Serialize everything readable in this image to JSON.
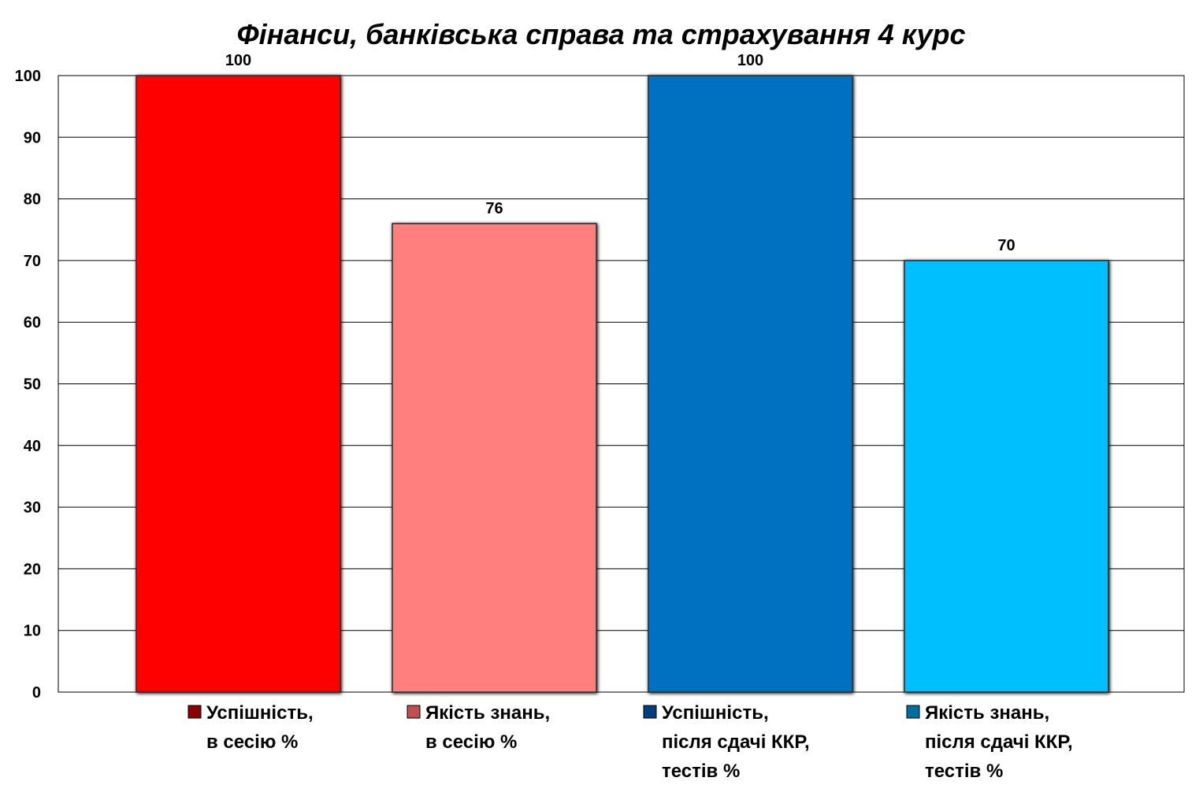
{
  "chart_data": {
    "type": "bar",
    "title": "Фінанси, банківська справа та страхування 4 курс",
    "xlabel": "",
    "ylabel": "",
    "ylim": [
      0,
      100
    ],
    "yticks": [
      0,
      10,
      20,
      30,
      40,
      50,
      60,
      70,
      80,
      90,
      100
    ],
    "grid": true,
    "legend_position": "bottom",
    "categories": [
      [
        "Успішність,",
        "в сесію %"
      ],
      [
        "Якість знань,",
        "в сесію %"
      ],
      [
        "Успішність,",
        "після сдачі ККР,",
        "тестів %"
      ],
      [
        "Якість знань,",
        "після сдачі ККР,",
        "тестів %"
      ]
    ],
    "values": [
      100,
      76,
      100,
      70
    ],
    "data_labels": [
      "100",
      "76",
      "100",
      "70"
    ],
    "colors": [
      "#ff0000",
      "#ff7f7f",
      "#0070c0",
      "#00bfff"
    ],
    "legend_marker_colors": [
      "#8b0000",
      "#c05050",
      "#003f7f",
      "#006f9f"
    ]
  }
}
